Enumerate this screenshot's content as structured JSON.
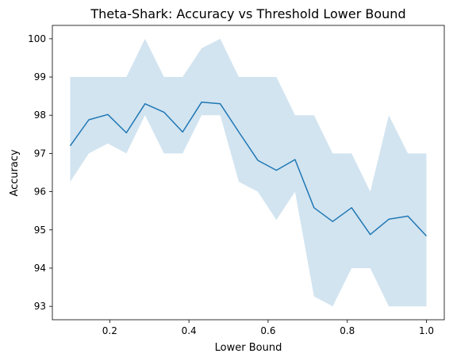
{
  "chart_data": {
    "type": "line",
    "title": "Theta-Shark: Accuracy vs Threshold Lower Bound",
    "xlabel": "Lower Bound",
    "ylabel": "Accuracy",
    "xlim": [
      0.055,
      1.045
    ],
    "ylim": [
      92.65,
      100.35
    ],
    "xticks": [
      0.2,
      0.4,
      0.6,
      0.8,
      1.0
    ],
    "xtick_labels": [
      "0.2",
      "0.4",
      "0.6",
      "0.8",
      "1.0"
    ],
    "yticks": [
      93,
      94,
      95,
      96,
      97,
      98,
      99,
      100
    ],
    "ytick_labels": [
      "93",
      "94",
      "95",
      "96",
      "97",
      "98",
      "99",
      "100"
    ],
    "grid": false,
    "x": [
      0.1,
      0.147,
      0.195,
      0.242,
      0.289,
      0.337,
      0.384,
      0.432,
      0.479,
      0.526,
      0.574,
      0.621,
      0.668,
      0.716,
      0.763,
      0.811,
      0.858,
      0.905,
      0.953,
      1.0
    ],
    "series": [
      {
        "values": [
          97.2,
          97.88,
          98.02,
          97.54,
          98.3,
          98.08,
          97.56,
          98.34,
          98.3,
          97.56,
          96.82,
          96.56,
          96.84,
          95.58,
          95.22,
          95.58,
          94.88,
          95.28,
          95.36,
          94.84
        ],
        "band_upper": [
          99,
          99,
          99,
          99,
          100,
          99,
          99,
          99.75,
          100,
          99,
          99,
          99,
          98,
          98,
          97,
          97,
          96,
          98,
          97,
          97
        ],
        "band_lower": [
          96.26,
          97,
          97.26,
          97,
          98,
          97,
          97,
          98,
          98,
          96.26,
          96,
          95.26,
          96,
          93.26,
          93,
          94,
          94,
          93,
          93,
          93
        ]
      }
    ],
    "colors": {
      "line": "#1f77b4",
      "band": "#1f77b4"
    }
  }
}
